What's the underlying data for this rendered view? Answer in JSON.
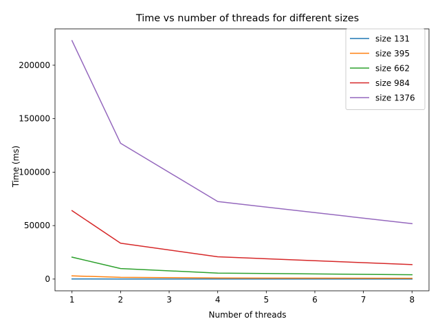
{
  "chart_data": {
    "type": "line",
    "title": "Time vs number of threads for different sizes",
    "xlabel": "Number of threads",
    "ylabel": "Time (ms)",
    "x": [
      1,
      2,
      4,
      8
    ],
    "xlim": [
      0.65,
      8.35
    ],
    "ylim": [
      -11000,
      234000
    ],
    "xticks": [
      1,
      2,
      3,
      4,
      5,
      6,
      7,
      8
    ],
    "yticks": [
      0,
      50000,
      100000,
      150000,
      200000
    ],
    "grid": false,
    "legend_position": "top-right",
    "series": [
      {
        "name": "size 131",
        "color": "#1f77b4",
        "values": [
          60,
          40,
          30,
          25
        ]
      },
      {
        "name": "size 395",
        "color": "#ff7f0e",
        "values": [
          3000,
          1600,
          1000,
          700
        ]
      },
      {
        "name": "size 662",
        "color": "#2ca02c",
        "values": [
          20500,
          9800,
          5600,
          4000
        ]
      },
      {
        "name": "size 984",
        "color": "#d62728",
        "values": [
          64000,
          33500,
          20800,
          13500
        ]
      },
      {
        "name": "size 1376",
        "color": "#9467bd",
        "values": [
          223000,
          127000,
          72500,
          51800
        ]
      }
    ]
  }
}
